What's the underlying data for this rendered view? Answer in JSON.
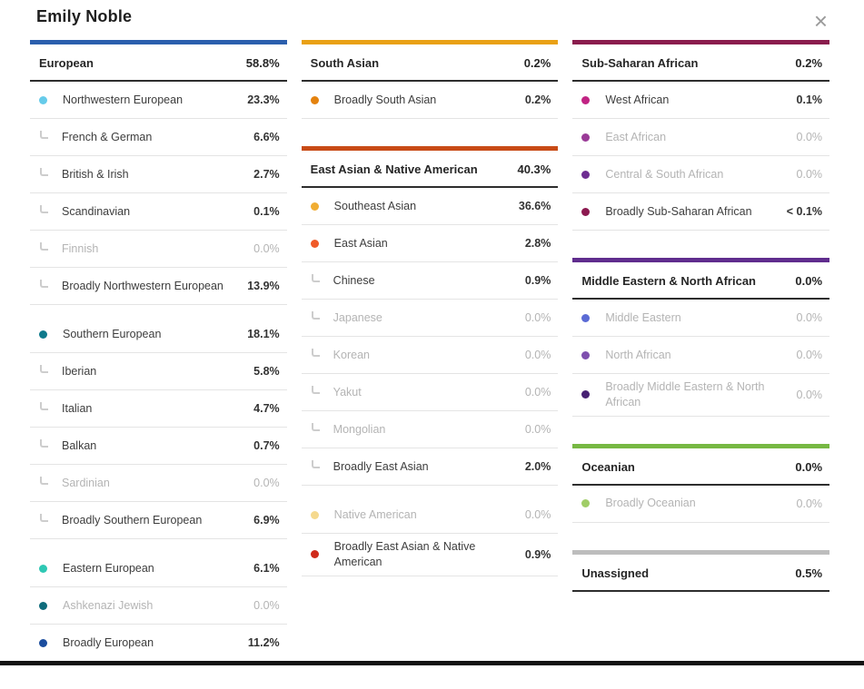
{
  "header": {
    "title": "Emily Noble",
    "close_icon": "×"
  },
  "columns": [
    {
      "sections": [
        {
          "name": "European",
          "percent": "58.8%",
          "color": "#2b5fad",
          "items": [
            {
              "label": "Northwestern European",
              "percent": "23.3%",
              "dot": "#66cbea"
            },
            {
              "label": "French & German",
              "percent": "6.6%",
              "sub": true
            },
            {
              "label": "British & Irish",
              "percent": "2.7%",
              "sub": true
            },
            {
              "label": "Scandinavian",
              "percent": "0.1%",
              "sub": true
            },
            {
              "label": "Finnish",
              "percent": "0.0%",
              "sub": true,
              "muted": true
            },
            {
              "label": "Broadly Northwestern European",
              "percent": "13.9%",
              "sub": true
            },
            {
              "label": "Southern European",
              "percent": "18.1%",
              "dot": "#0e7a8c",
              "gap": true
            },
            {
              "label": "Iberian",
              "percent": "5.8%",
              "sub": true
            },
            {
              "label": "Italian",
              "percent": "4.7%",
              "sub": true
            },
            {
              "label": "Balkan",
              "percent": "0.7%",
              "sub": true
            },
            {
              "label": "Sardinian",
              "percent": "0.0%",
              "sub": true,
              "muted": true
            },
            {
              "label": "Broadly Southern European",
              "percent": "6.9%",
              "sub": true
            },
            {
              "label": "Eastern European",
              "percent": "6.1%",
              "dot": "#2ec8b4",
              "gap": true
            },
            {
              "label": "Ashkenazi Jewish",
              "percent": "0.0%",
              "dot": "#0f6c7c",
              "muted": true
            },
            {
              "label": "Broadly European",
              "percent": "11.2%",
              "dot": "#1b4d9e"
            }
          ]
        }
      ]
    },
    {
      "sections": [
        {
          "name": "South Asian",
          "percent": "0.2%",
          "color": "#e9a115",
          "items": [
            {
              "label": "Broadly South Asian",
              "percent": "0.2%",
              "dot": "#e4820e"
            }
          ]
        },
        {
          "name": "East Asian & Native American",
          "percent": "40.3%",
          "color": "#c84b16",
          "items": [
            {
              "label": "Southeast Asian",
              "percent": "36.6%",
              "dot": "#f0ad33"
            },
            {
              "label": "East Asian",
              "percent": "2.8%",
              "dot": "#f05a28"
            },
            {
              "label": "Chinese",
              "percent": "0.9%",
              "sub": true
            },
            {
              "label": "Japanese",
              "percent": "0.0%",
              "sub": true,
              "muted": true
            },
            {
              "label": "Korean",
              "percent": "0.0%",
              "sub": true,
              "muted": true
            },
            {
              "label": "Yakut",
              "percent": "0.0%",
              "sub": true,
              "muted": true
            },
            {
              "label": "Mongolian",
              "percent": "0.0%",
              "sub": true,
              "muted": true
            },
            {
              "label": "Broadly East Asian",
              "percent": "2.0%",
              "sub": true
            },
            {
              "label": "Native American",
              "percent": "0.0%",
              "dot": "#f5d98e",
              "muted": true,
              "gap": true
            },
            {
              "label": "Broadly East Asian & Native American",
              "percent": "0.9%",
              "dot": "#cf2a1b"
            }
          ]
        }
      ]
    },
    {
      "sections": [
        {
          "name": "Sub-Saharan African",
          "percent": "0.2%",
          "color": "#8a1c4d",
          "items": [
            {
              "label": "West African",
              "percent": "0.1%",
              "dot": "#c12383"
            },
            {
              "label": "East African",
              "percent": "0.0%",
              "dot": "#9a3a97",
              "muted": true
            },
            {
              "label": "Central & South African",
              "percent": "0.0%",
              "dot": "#6e2d91",
              "muted": true
            },
            {
              "label": "Broadly Sub-Saharan African",
              "percent": "< 0.1%",
              "dot": "#8c1a50"
            }
          ]
        },
        {
          "name": "Middle Eastern & North African",
          "percent": "0.0%",
          "color": "#602d8e",
          "items": [
            {
              "label": "Middle Eastern",
              "percent": "0.0%",
              "dot": "#5b6bd5",
              "muted": true
            },
            {
              "label": "North African",
              "percent": "0.0%",
              "dot": "#7e4fae",
              "muted": true
            },
            {
              "label": "Broadly Middle Eastern & North African",
              "percent": "0.0%",
              "dot": "#472173",
              "muted": true
            }
          ]
        },
        {
          "name": "Oceanian",
          "percent": "0.0%",
          "color": "#77b843",
          "items": [
            {
              "label": "Broadly Oceanian",
              "percent": "0.0%",
              "dot": "#a0cd67",
              "muted": true
            }
          ]
        },
        {
          "name": "Unassigned",
          "percent": "0.5%",
          "color": "#bdbdbd",
          "items": []
        }
      ]
    }
  ]
}
